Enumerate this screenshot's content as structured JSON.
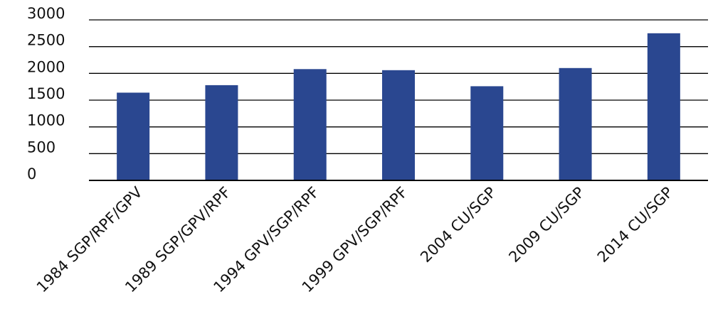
{
  "chart_data": {
    "type": "bar",
    "title": "",
    "xlabel": "",
    "ylabel": "",
    "categories": [
      "1984 SGP/RPF/GPV",
      "1989 SGP/GPV/RPF",
      "1994 GPV/SGP/RPF",
      "1999 GPV/SGP/RPF",
      "2004 CU/SGP",
      "2009 CU/SGP",
      "2014 CU/SGP"
    ],
    "values": [
      1640,
      1780,
      2080,
      2060,
      1760,
      2100,
      2750
    ],
    "ylim": [
      0,
      3000
    ],
    "yticks": [
      0,
      500,
      1000,
      1500,
      2000,
      2500,
      3000
    ],
    "grid": true,
    "legend": "none",
    "colors": {
      "bar": "#2a4790",
      "grid": "#000000",
      "axis": "#000000"
    }
  }
}
